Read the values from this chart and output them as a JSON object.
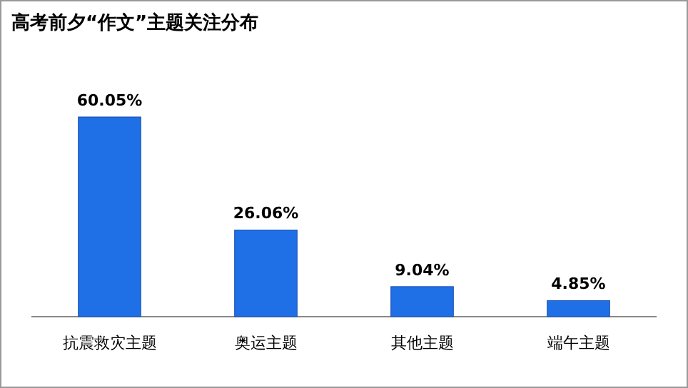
{
  "chart_data": {
    "type": "bar",
    "title": "高考前夕“作文”主题关注分布",
    "categories": [
      "抗震救灾主题",
      "奥运主题",
      "其他主题",
      "端午主题"
    ],
    "values": [
      60.05,
      26.06,
      9.04,
      4.85
    ],
    "value_labels": [
      "60.05%",
      "26.06%",
      "9.04%",
      "4.85%"
    ],
    "color": "#1f6fe6"
  }
}
